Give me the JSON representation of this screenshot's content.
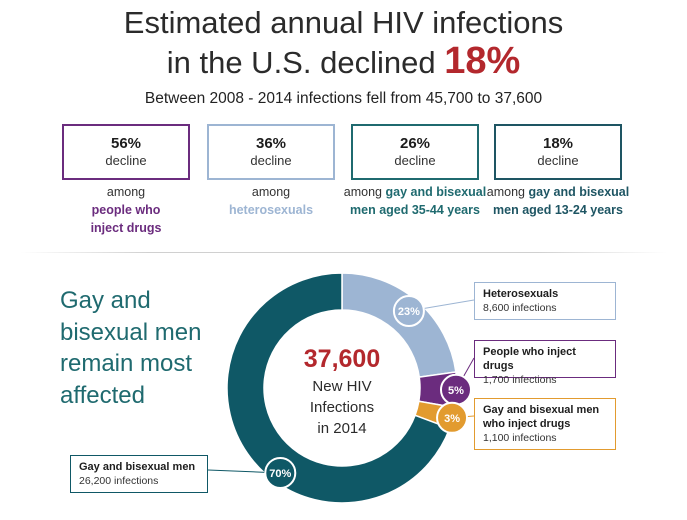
{
  "header": {
    "title_line1": "Estimated annual HIV infections",
    "title_line2_prefix": "in the U.S. declined",
    "title_line2_pct": "18%",
    "subtitle": "Between 2008 - 2014 infections fell from 45,700 to 37,600"
  },
  "stats": [
    {
      "pct": "56%",
      "label": "decline",
      "cap_plain": "among",
      "cap_bold": "people who inject drugs",
      "color": "#6b2c7e"
    },
    {
      "pct": "36%",
      "label": "decline",
      "cap_plain": "among",
      "cap_bold": "heterosexuals",
      "color": "#9db5d3"
    },
    {
      "pct": "26%",
      "label": "decline",
      "cap_plain": "among",
      "cap_bold": "gay and bisexual men aged 35-44 years",
      "color": "#1f6a6f"
    },
    {
      "pct": "18%",
      "label": "decline",
      "cap_plain": "among",
      "cap_bold": "gay and bisexual men aged 13-24 years",
      "color": "#1e5563"
    }
  ],
  "left_heading": "Gay and bisexual men remain most affected",
  "center": {
    "total": "37,600",
    "line1": "New HIV",
    "line2": "Infections",
    "line3": "in 2014"
  },
  "chart_data": {
    "type": "pie",
    "variant": "donut",
    "title": "37,600 New HIV Infections in 2014",
    "total": 37600,
    "slices": [
      {
        "label": "Heterosexuals",
        "percent": 23,
        "value": 8600,
        "value_text": "8,600 infections",
        "color": "#9db5d3"
      },
      {
        "label": "People who inject drugs",
        "percent": 5,
        "value": 1700,
        "value_text": "1,700 infections",
        "color": "#6b2c7e"
      },
      {
        "label": "Gay and bisexual men who inject drugs",
        "percent": 3,
        "value": 1100,
        "value_text": "1,100 infections",
        "color": "#e29b2f"
      },
      {
        "label": "Gay and bisexual men",
        "percent": 70,
        "value": 26200,
        "value_text": "26,200 infections",
        "color": "#0f5866"
      }
    ],
    "start": "12 o'clock",
    "direction": "clockwise"
  }
}
